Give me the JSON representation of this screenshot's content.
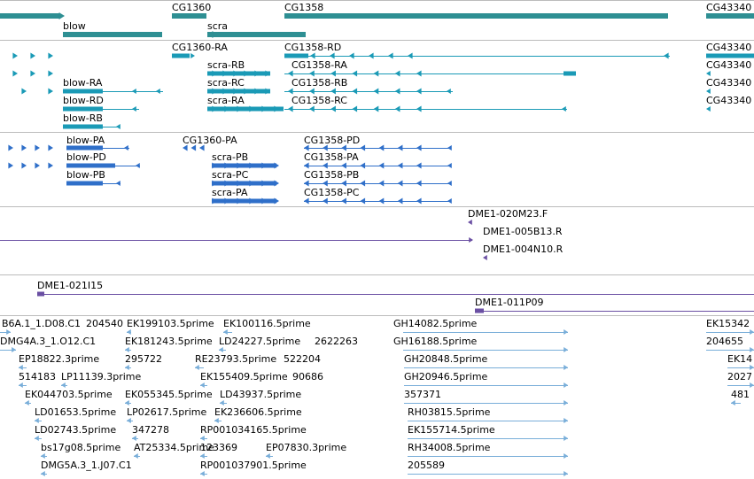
{
  "colors": {
    "gene": "#2e8f93",
    "transcript": "#1a9ab6",
    "protein": "#2f6fc9",
    "clone": "#6a4fa3",
    "est": "#79aed9",
    "separator": "#bcbcbc"
  },
  "genes": [
    {
      "label": "CG1360"
    },
    {
      "label": "CG1358"
    },
    {
      "label": "CG43340"
    },
    {
      "label": "blow"
    },
    {
      "label": "scra"
    }
  ],
  "transcripts": [
    {
      "label": "CG1360-RA"
    },
    {
      "label": "CG1358-RD"
    },
    {
      "label": "CG43340"
    },
    {
      "label": "scra-RB"
    },
    {
      "label": "CG1358-RA"
    },
    {
      "label": "CG43340"
    },
    {
      "label": "blow-RA"
    },
    {
      "label": "scra-RC"
    },
    {
      "label": "CG1358-RB"
    },
    {
      "label": "CG43340"
    },
    {
      "label": "blow-RD"
    },
    {
      "label": "scra-RA"
    },
    {
      "label": "CG1358-RC"
    },
    {
      "label": "CG43340"
    },
    {
      "label": "blow-RB"
    }
  ],
  "proteins": [
    {
      "label": "blow-PA"
    },
    {
      "label": "CG1360-PA"
    },
    {
      "label": "CG1358-PD"
    },
    {
      "label": "blow-PD"
    },
    {
      "label": "scra-PB"
    },
    {
      "label": "CG1358-PA"
    },
    {
      "label": "blow-PB"
    },
    {
      "label": "scra-PC"
    },
    {
      "label": "CG1358-PB"
    },
    {
      "label": "scra-PA"
    },
    {
      "label": "CG1358-PC"
    }
  ],
  "clones": [
    {
      "label": "DME1-020M23.F"
    },
    {
      "label": "DME1-005B13.R"
    },
    {
      "label": "DME1-004N10.R"
    },
    {
      "label": "DME1-021I15"
    },
    {
      "label": "DME1-011P09"
    }
  ],
  "ests": [
    {
      "label": "B6A.1_1.D08.C1"
    },
    {
      "label": "204540"
    },
    {
      "label": "EK199103.5prime"
    },
    {
      "label": "EK100116.5prime"
    },
    {
      "label": "GH14082.5prime"
    },
    {
      "label": "EK15342"
    },
    {
      "label": "DMG4A.3_1.O12.C1"
    },
    {
      "label": "EK181243.5prime"
    },
    {
      "label": "LD24227.5prime"
    },
    {
      "label": "2622263"
    },
    {
      "label": "GH16188.5prime"
    },
    {
      "label": "204655"
    },
    {
      "label": "EP18822.3prime"
    },
    {
      "label": "295722"
    },
    {
      "label": "RE23793.5prime"
    },
    {
      "label": "522204"
    },
    {
      "label": "GH20848.5prime"
    },
    {
      "label": "EK14"
    },
    {
      "label": "514183"
    },
    {
      "label": "LP11139.3prime"
    },
    {
      "label": "EK155409.5prime"
    },
    {
      "label": "90686"
    },
    {
      "label": "GH20946.5prime"
    },
    {
      "label": "2027"
    },
    {
      "label": "EK044703.5prime"
    },
    {
      "label": "EK055345.5prime"
    },
    {
      "label": "LD43937.5prime"
    },
    {
      "label": "357371"
    },
    {
      "label": "481"
    },
    {
      "label": "LD01653.5prime"
    },
    {
      "label": "LP02617.5prime"
    },
    {
      "label": "EK236606.5prime"
    },
    {
      "label": "RH03815.5prime"
    },
    {
      "label": "LD02743.5prime"
    },
    {
      "label": "347278"
    },
    {
      "label": "RP001034165.5prime"
    },
    {
      "label": "EK155714.5prime"
    },
    {
      "label": "bs17g08.5prime"
    },
    {
      "label": "AT25334.5prime"
    },
    {
      "label": "123369"
    },
    {
      "label": "EP07830.3prime"
    },
    {
      "label": "RH34008.5prime"
    },
    {
      "label": "DMG5A.3_1.J07.C1"
    },
    {
      "label": "RP001037901.5prime"
    },
    {
      "label": "205589"
    }
  ]
}
